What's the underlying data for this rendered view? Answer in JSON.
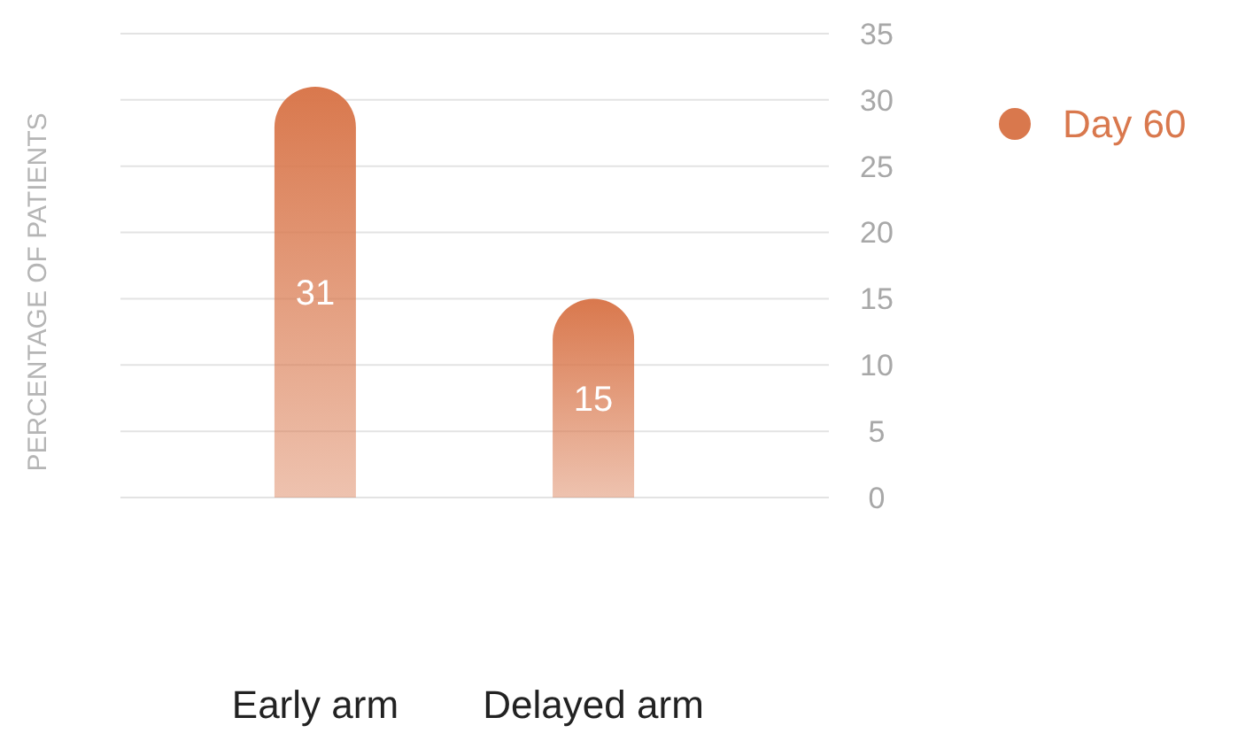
{
  "chart_data": {
    "type": "bar",
    "ylabel": "PERCENTAGE OF PATIENTS",
    "categories": [
      "Early arm",
      "Delayed arm"
    ],
    "series": [
      {
        "name": "Day 60",
        "color": "#d9784d",
        "values": [
          31,
          15
        ]
      }
    ],
    "ylim": [
      0,
      35
    ],
    "yticks": [
      0,
      5,
      10,
      15,
      20,
      25,
      30,
      35
    ],
    "grid": "y",
    "legend": "right",
    "data_labels": true
  }
}
